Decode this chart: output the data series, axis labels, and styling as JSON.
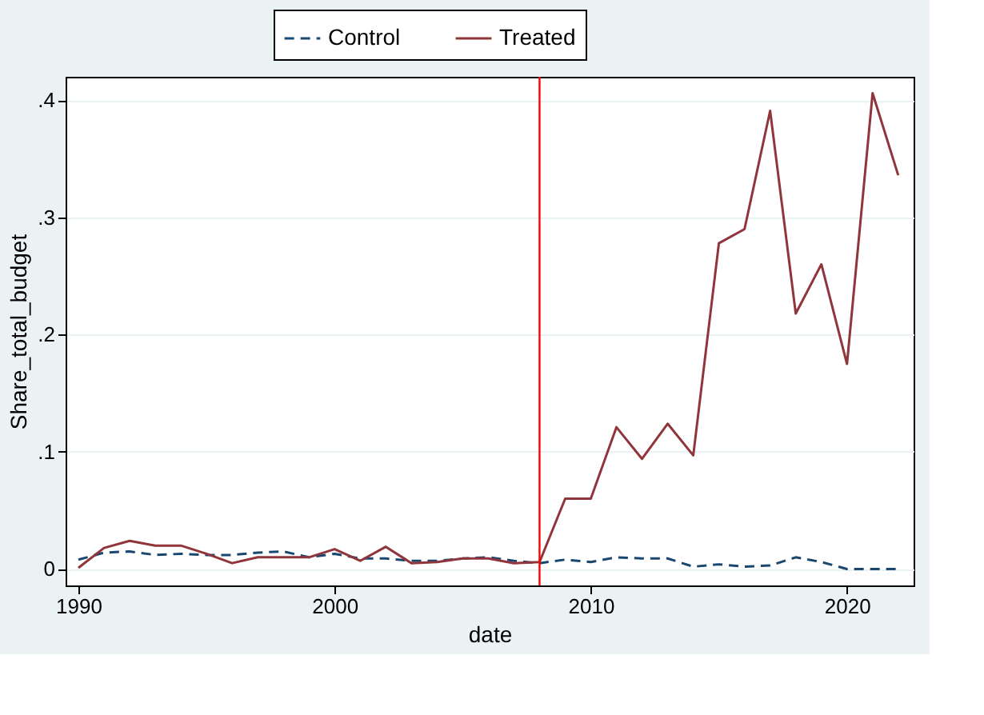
{
  "chart_data": {
    "type": "line",
    "xlabel": "date",
    "ylabel": "Share_total_budget",
    "x": [
      1990,
      1991,
      1992,
      1993,
      1994,
      1995,
      1996,
      1997,
      1998,
      1999,
      2000,
      2001,
      2002,
      2003,
      2004,
      2005,
      2006,
      2007,
      2008,
      2009,
      2010,
      2011,
      2012,
      2013,
      2014,
      2015,
      2016,
      2017,
      2018,
      2019,
      2020,
      2021,
      2022
    ],
    "series": [
      {
        "name": "Control",
        "color": "#1a476f",
        "line_style": "dashed",
        "values": [
          0.008,
          0.014,
          0.015,
          0.012,
          0.013,
          0.012,
          0.012,
          0.014,
          0.015,
          0.01,
          0.013,
          0.009,
          0.009,
          0.007,
          0.007,
          0.009,
          0.01,
          0.007,
          0.005,
          0.008,
          0.006,
          0.01,
          0.009,
          0.009,
          0.002,
          0.004,
          0.002,
          0.003,
          0.01,
          0.006,
          0.0,
          0.0,
          0.0
        ]
      },
      {
        "name": "Treated",
        "color": "#90353b",
        "line_style": "solid",
        "values": [
          0.001,
          0.018,
          0.024,
          0.02,
          0.02,
          0.013,
          0.005,
          0.01,
          0.01,
          0.01,
          0.017,
          0.007,
          0.019,
          0.005,
          0.006,
          0.009,
          0.009,
          0.005,
          0.006,
          0.06,
          0.06,
          0.121,
          0.094,
          0.124,
          0.097,
          0.278,
          0.29,
          0.391,
          0.218,
          0.26,
          0.175,
          0.406,
          0.336
        ]
      }
    ],
    "xlim": [
      1989.5,
      2022.6
    ],
    "xticks": [
      1990,
      2000,
      2010,
      2020
    ],
    "ylim": [
      -0.014,
      0.42
    ],
    "yticks": [
      0,
      {
        "value": 0.1,
        "label": ".1"
      },
      {
        "value": 0.2,
        "label": ".2"
      },
      {
        "value": 0.3,
        "label": ".3"
      },
      {
        "value": 0.4,
        "label": ".4"
      }
    ],
    "ref_lines": [
      {
        "axis": "x",
        "value": 2008,
        "color": "#ff0000"
      }
    ],
    "grid": "y",
    "legend": "top"
  }
}
